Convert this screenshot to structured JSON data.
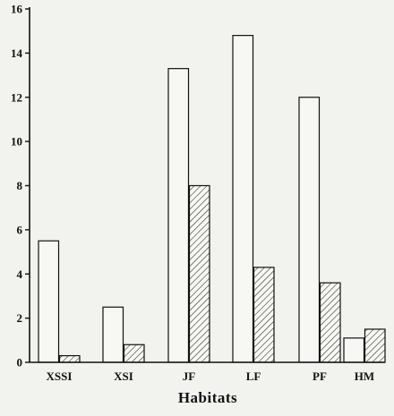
{
  "chart_data": {
    "type": "bar",
    "title": "",
    "xlabel": "Habitats",
    "ylabel": "",
    "ylim": [
      0,
      16
    ],
    "yticks": [
      0,
      2,
      4,
      6,
      8,
      10,
      12,
      14,
      16
    ],
    "categories": [
      "XSSI",
      "XSI",
      "JF",
      "LF",
      "PF",
      "HM"
    ],
    "series": [
      {
        "fill": "open",
        "values": [
          5.5,
          2.5,
          13.3,
          14.8,
          12.0,
          1.1
        ]
      },
      {
        "fill": "hatched",
        "values": [
          0.3,
          0.8,
          8.0,
          4.3,
          3.6,
          1.5
        ]
      }
    ],
    "grid": false,
    "legend": "none",
    "colors": {
      "stroke": "#111111",
      "open_fill": "#f7f7f3",
      "hatch_line": "#222222"
    }
  }
}
